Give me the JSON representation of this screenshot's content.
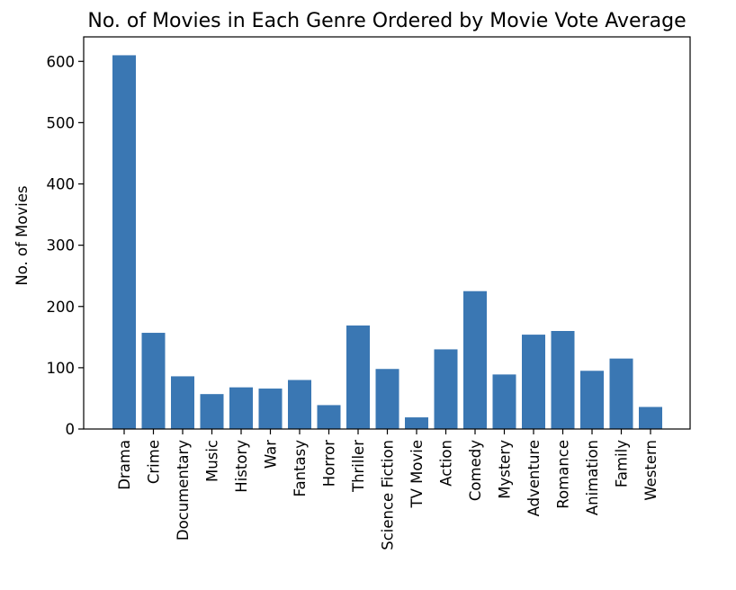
{
  "chart_data": {
    "type": "bar",
    "title": "No. of Movies in Each Genre Ordered by Movie Vote Average",
    "xlabel": "",
    "ylabel": "No. of Movies",
    "categories": [
      "Drama",
      "Crime",
      "Documentary",
      "Music",
      "History",
      "War",
      "Fantasy",
      "Horror",
      "Thriller",
      "Science Fiction",
      "TV Movie",
      "Action",
      "Comedy",
      "Mystery",
      "Adventure",
      "Romance",
      "Animation",
      "Family",
      "Western"
    ],
    "values": [
      610,
      157,
      86,
      57,
      68,
      66,
      80,
      39,
      169,
      98,
      19,
      130,
      225,
      89,
      154,
      160,
      95,
      115,
      36
    ],
    "ylim": [
      0,
      640
    ],
    "yticks": [
      0,
      100,
      200,
      300,
      400,
      500,
      600
    ],
    "grid": false,
    "bar_color": "#3a77b3"
  }
}
